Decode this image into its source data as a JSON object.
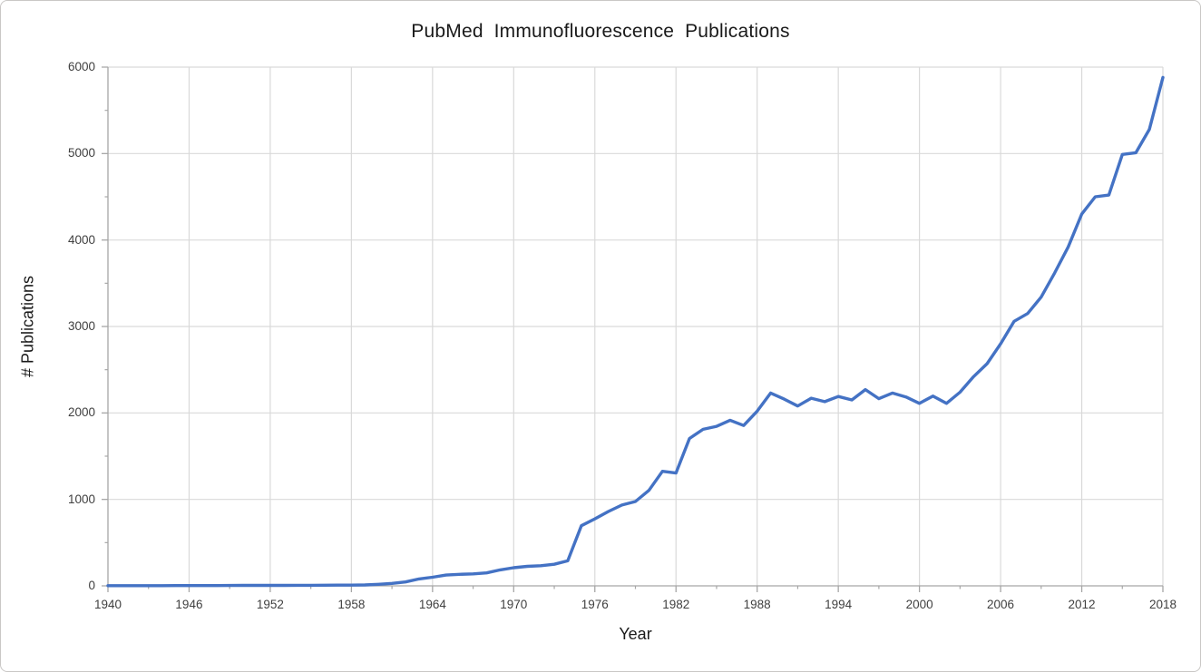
{
  "chart": {
    "title": "PubMed Immunofluorescence Publications",
    "x_axis_label": "Year",
    "y_axis_label": "# Publications"
  },
  "chart_data": {
    "type": "line",
    "title": "PubMed Immunofluorescence Publications",
    "xlabel": "Year",
    "ylabel": "# Publications",
    "xlim": [
      1940,
      2018
    ],
    "ylim": [
      0,
      6000
    ],
    "x_major_ticks": [
      1940,
      1946,
      1952,
      1958,
      1964,
      1970,
      1976,
      1982,
      1988,
      1994,
      2000,
      2006,
      2012,
      2018
    ],
    "x_minor_tick_interval": 3,
    "y_major_ticks": [
      0,
      1000,
      2000,
      3000,
      4000,
      5000,
      6000
    ],
    "y_minor_tick_interval": 500,
    "grid": true,
    "legend": "none",
    "colors": {
      "line": "#4472C4",
      "gridline": "#D9D9D9",
      "axis": "#A6A6A6",
      "tick_label": "#404040",
      "title_text": "#1a1a1a"
    },
    "series": [
      {
        "name": "Publications",
        "x": [
          1940,
          1941,
          1942,
          1943,
          1944,
          1945,
          1946,
          1947,
          1948,
          1949,
          1950,
          1951,
          1952,
          1953,
          1954,
          1955,
          1956,
          1957,
          1958,
          1959,
          1960,
          1961,
          1962,
          1963,
          1964,
          1965,
          1966,
          1967,
          1968,
          1969,
          1970,
          1971,
          1972,
          1973,
          1974,
          1975,
          1976,
          1977,
          1978,
          1979,
          1980,
          1981,
          1982,
          1983,
          1984,
          1985,
          1986,
          1987,
          1988,
          1989,
          1990,
          1991,
          1992,
          1993,
          1994,
          1995,
          1996,
          1997,
          1998,
          1999,
          2000,
          2001,
          2002,
          2003,
          2004,
          2005,
          2006,
          2007,
          2008,
          2009,
          2010,
          2011,
          2012,
          2013,
          2014,
          2015,
          2016,
          2017,
          2018
        ],
        "y": [
          2,
          2,
          2,
          2,
          2,
          3,
          3,
          3,
          3,
          4,
          5,
          5,
          5,
          5,
          6,
          6,
          7,
          8,
          8,
          10,
          18,
          28,
          45,
          80,
          100,
          125,
          133,
          138,
          150,
          185,
          210,
          225,
          233,
          250,
          290,
          695,
          775,
          860,
          935,
          975,
          1105,
          1325,
          1305,
          1705,
          1810,
          1845,
          1915,
          1855,
          2020,
          2230,
          2160,
          2080,
          2170,
          2130,
          2190,
          2150,
          2270,
          2165,
          2230,
          2185,
          2110,
          2195,
          2110,
          2240,
          2420,
          2570,
          2800,
          3060,
          3150,
          3340,
          3620,
          3920,
          4300,
          4500,
          4520,
          4990,
          5010,
          5280,
          5880
        ]
      }
    ]
  }
}
